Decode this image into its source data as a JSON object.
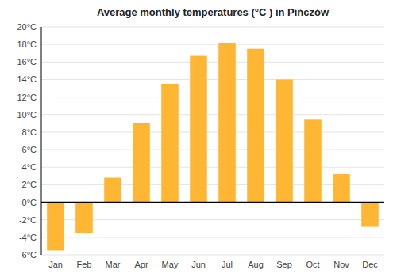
{
  "chart_data": {
    "type": "bar",
    "title": "Average monthly temperatures (°C ) in Pińczów",
    "categories": [
      "Jan",
      "Feb",
      "Mar",
      "Apr",
      "May",
      "Jun",
      "Jul",
      "Aug",
      "Sep",
      "Oct",
      "Nov",
      "Dec"
    ],
    "values": [
      -5.5,
      -3.5,
      2.8,
      9.0,
      13.5,
      16.7,
      18.2,
      17.5,
      14.0,
      9.5,
      3.2,
      -2.8
    ],
    "color": "#FFB733",
    "ylim": [
      -6,
      20
    ],
    "yticks": [
      {
        "value": -6,
        "label": "-6°C"
      },
      {
        "value": -4,
        "label": "-4°C"
      },
      {
        "value": -2,
        "label": "-2°C"
      },
      {
        "value": 0,
        "label": "0°C"
      },
      {
        "value": 2,
        "label": "2°C"
      },
      {
        "value": 4,
        "label": "4°C"
      },
      {
        "value": 6,
        "label": "6°C"
      },
      {
        "value": 8,
        "label": "8°C"
      },
      {
        "value": 10,
        "label": "10°C"
      },
      {
        "value": 12,
        "label": "12°C"
      },
      {
        "value": 14,
        "label": "14°C"
      },
      {
        "value": 16,
        "label": "16°C"
      },
      {
        "value": 18,
        "label": "18°C"
      },
      {
        "value": 20,
        "label": "20°C"
      }
    ],
    "grid": true
  }
}
